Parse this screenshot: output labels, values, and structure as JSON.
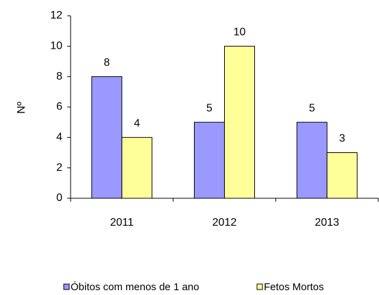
{
  "chart_data": {
    "type": "bar",
    "y_label": "Nº",
    "categories": [
      "2011",
      "2012",
      "2013"
    ],
    "series": [
      {
        "name": "Óbitos com menos de 1 ano",
        "color": "#9999ff",
        "values": [
          8,
          5,
          5
        ]
      },
      {
        "name": "Fetos Mortos",
        "color": "#ffff99",
        "values": [
          4,
          10,
          3
        ]
      }
    ],
    "ylim": [
      0,
      12
    ],
    "yticks": [
      0,
      2,
      4,
      6,
      8,
      10,
      12
    ],
    "grid": false,
    "legend": "bottom"
  }
}
